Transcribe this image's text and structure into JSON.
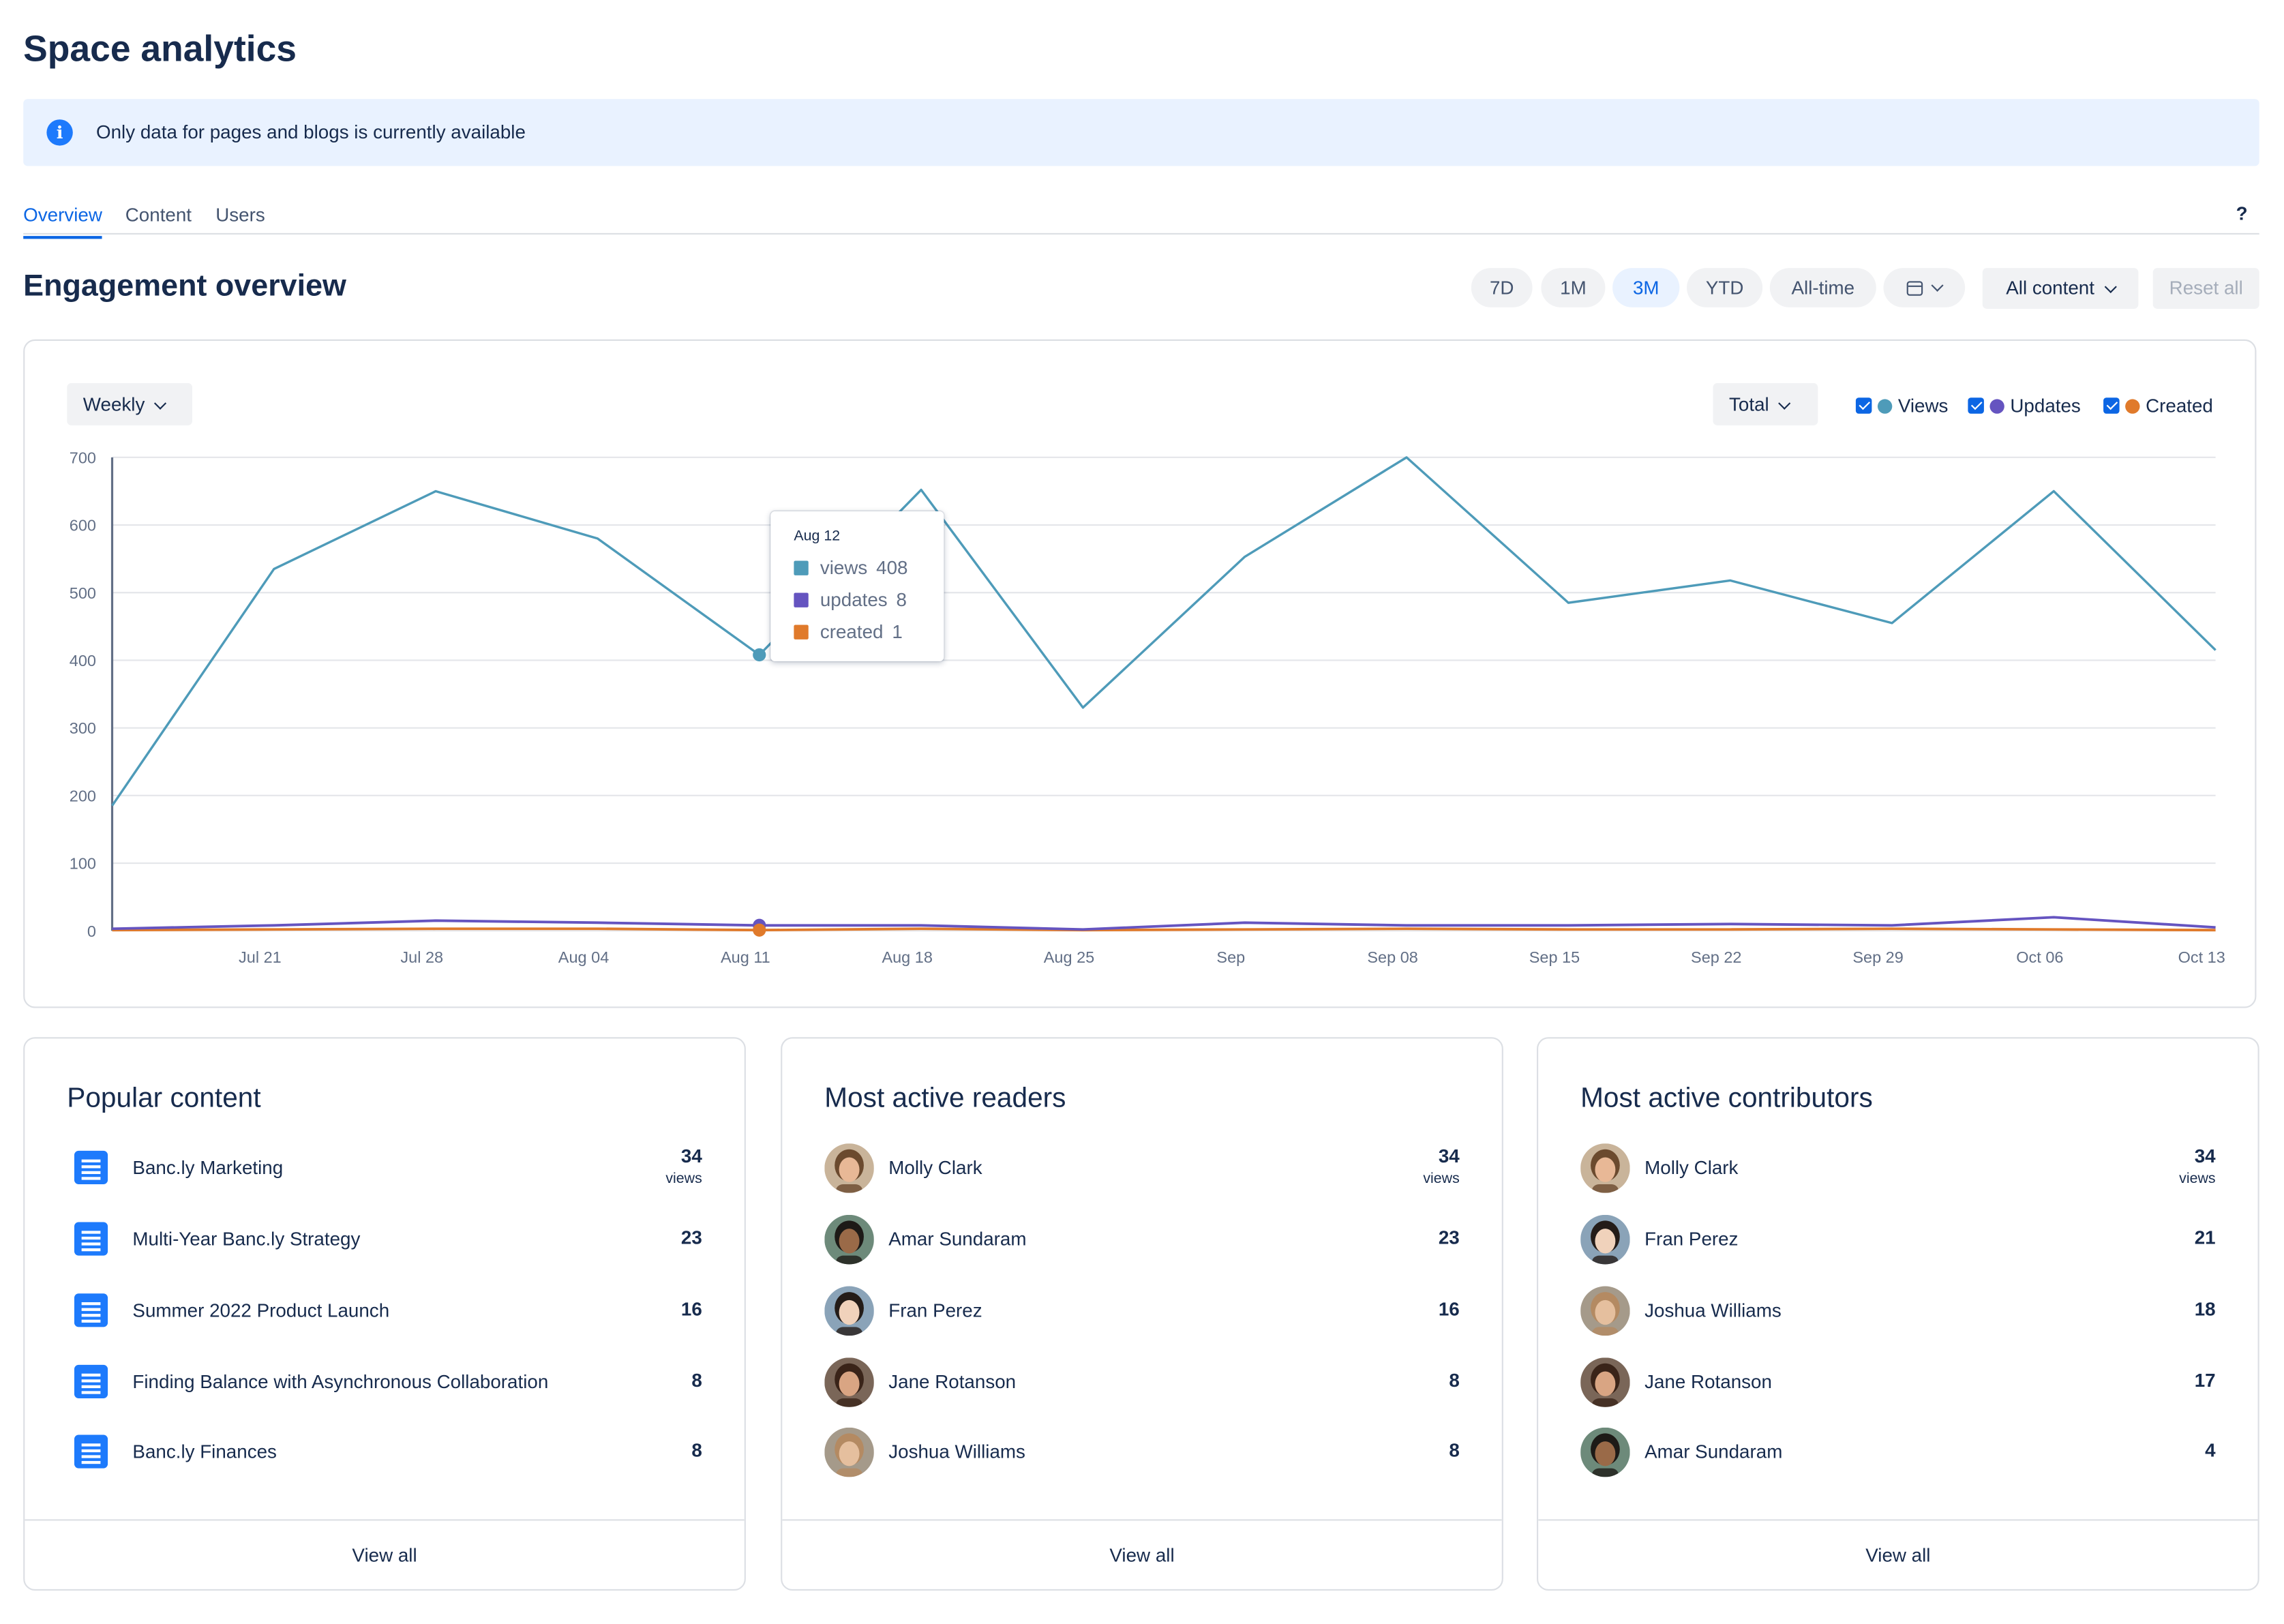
{
  "page": {
    "title": "Space analytics"
  },
  "banner": {
    "message": "Only data for pages and blogs is currently available"
  },
  "tabs": [
    {
      "label": "Overview",
      "active": true
    },
    {
      "label": "Content",
      "active": false
    },
    {
      "label": "Users",
      "active": false
    }
  ],
  "help_label": "?",
  "engagement": {
    "title": "Engagement overview",
    "ranges": [
      {
        "label": "7D",
        "active": false
      },
      {
        "label": "1M",
        "active": false
      },
      {
        "label": "3M",
        "active": true
      },
      {
        "label": "YTD",
        "active": false
      },
      {
        "label": "All-time",
        "active": false
      }
    ],
    "content_filter": "All content",
    "reset_label": "Reset all",
    "granularity": "Weekly",
    "aggregation": "Total",
    "legend": [
      {
        "label": "Views",
        "color": "#4e9bb9",
        "checked": true
      },
      {
        "label": "Updates",
        "color": "#6554c0",
        "checked": true
      },
      {
        "label": "Created",
        "color": "#e07a2b",
        "checked": true
      }
    ]
  },
  "chart_data": {
    "type": "line",
    "ylim": [
      0,
      700
    ],
    "yticks": [
      0,
      100,
      200,
      300,
      400,
      500,
      600,
      700
    ],
    "xtick_labels": [
      "Jul 21",
      "Jul 28",
      "Aug 04",
      "Aug 11",
      "Aug 18",
      "Aug 25",
      "Sep",
      "Sep 08",
      "Sep 15",
      "Sep 22",
      "Sep 29",
      "Oct 06",
      "Oct 13"
    ],
    "x": [
      "Jul 15",
      "Jul 22",
      "Jul 29",
      "Aug 05",
      "Aug 12",
      "Aug 19",
      "Aug 26",
      "Sep 02",
      "Sep 09",
      "Sep 16",
      "Sep 23",
      "Sep 30",
      "Oct 07",
      "Oct 14"
    ],
    "series": [
      {
        "name": "views",
        "color": "#4e9bb9",
        "values": [
          185,
          535,
          650,
          580,
          408,
          652,
          330,
          553,
          700,
          485,
          518,
          455,
          650,
          415
        ]
      },
      {
        "name": "updates",
        "color": "#6554c0",
        "values": [
          3,
          8,
          15,
          12,
          8,
          8,
          2,
          12,
          8,
          8,
          10,
          8,
          20,
          5
        ]
      },
      {
        "name": "created",
        "color": "#e07a2b",
        "values": [
          1,
          2,
          3,
          3,
          1,
          3,
          1,
          2,
          3,
          2,
          2,
          3,
          2,
          1
        ]
      }
    ],
    "highlight_index": 4,
    "grid": true,
    "legend": "top-right"
  },
  "tooltip": {
    "date": "Aug 12",
    "rows": [
      {
        "label": "views",
        "value": "408",
        "color": "#4e9bb9"
      },
      {
        "label": "updates",
        "value": "8",
        "color": "#6554c0"
      },
      {
        "label": "created",
        "value": "1",
        "color": "#e07a2b"
      }
    ]
  },
  "popular": {
    "title": "Popular content",
    "items": [
      {
        "label": "Banc.ly Marketing",
        "value": "34",
        "unit": "views"
      },
      {
        "label": "Multi-Year Banc.ly Strategy",
        "value": "23"
      },
      {
        "label": "Summer 2022 Product Launch",
        "value": "16"
      },
      {
        "label": "Finding Balance with Asynchronous Collaboration",
        "value": "8"
      },
      {
        "label": "Banc.ly Finances",
        "value": "8"
      }
    ],
    "footer": "View all"
  },
  "readers": {
    "title": "Most active readers",
    "items": [
      {
        "label": "Molly Clark",
        "value": "34",
        "unit": "views"
      },
      {
        "label": "Amar Sundaram",
        "value": "23"
      },
      {
        "label": "Fran Perez",
        "value": "16"
      },
      {
        "label": "Jane Rotanson",
        "value": "8"
      },
      {
        "label": "Joshua Williams",
        "value": "8"
      }
    ],
    "footer": "View all"
  },
  "contributors": {
    "title": "Most active contributors",
    "items": [
      {
        "label": "Molly Clark",
        "value": "34",
        "unit": "views"
      },
      {
        "label": "Fran Perez",
        "value": "21"
      },
      {
        "label": "Joshua Williams",
        "value": "18"
      },
      {
        "label": "Jane Rotanson",
        "value": "17"
      },
      {
        "label": "Amar Sundaram",
        "value": "4"
      }
    ],
    "footer": "View all"
  },
  "avatars": {
    "Molly Clark": {
      "skin": "#e8b896",
      "hair": "#6b4a2e",
      "bg": "#c9b49a"
    },
    "Amar Sundaram": {
      "skin": "#9a6a48",
      "hair": "#1d1a17",
      "bg": "#6d8a7a"
    },
    "Fran Perez": {
      "skin": "#f0d2bb",
      "hair": "#241c18",
      "bg": "#8aa3b8"
    },
    "Jane Rotanson": {
      "skin": "#d9a583",
      "hair": "#3a2419",
      "bg": "#7a6658"
    },
    "Joshua Williams": {
      "skin": "#e5bf9e",
      "hair": "#b48a62",
      "bg": "#a59a8a"
    }
  }
}
